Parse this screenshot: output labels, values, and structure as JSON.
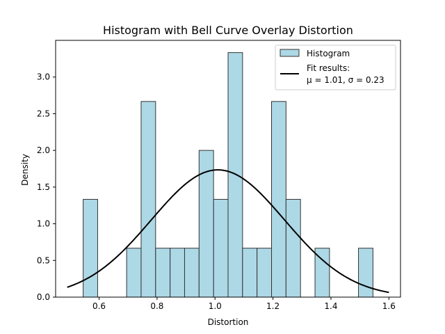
{
  "chart_data": {
    "type": "bar",
    "title": "Histogram with Bell Curve Overlay Distortion",
    "xlabel": "Distortion",
    "ylabel": "Density",
    "xlim": [
      0.45,
      1.64
    ],
    "ylim": [
      0,
      3.5
    ],
    "xticks": [
      0.6,
      0.8,
      1.0,
      1.2,
      1.4,
      1.6
    ],
    "xtick_labels": [
      "0.6",
      "0.8",
      "1.0",
      "1.2",
      "1.4",
      "1.6"
    ],
    "yticks": [
      0.0,
      0.5,
      1.0,
      1.5,
      2.0,
      2.5,
      3.0
    ],
    "ytick_labels": [
      "0.0",
      "0.5",
      "1.0",
      "1.5",
      "2.0",
      "2.5",
      "3.0"
    ],
    "bin_width": 0.05,
    "bins": [
      {
        "left": 0.545,
        "value": 1.333
      },
      {
        "left": 0.595,
        "value": 0
      },
      {
        "left": 0.645,
        "value": 0
      },
      {
        "left": 0.695,
        "value": 0.667
      },
      {
        "left": 0.745,
        "value": 2.667
      },
      {
        "left": 0.795,
        "value": 0.667
      },
      {
        "left": 0.845,
        "value": 0.667
      },
      {
        "left": 0.895,
        "value": 0.667
      },
      {
        "left": 0.945,
        "value": 2.0
      },
      {
        "left": 0.995,
        "value": 1.333
      },
      {
        "left": 1.045,
        "value": 3.333
      },
      {
        "left": 1.095,
        "value": 0.667
      },
      {
        "left": 1.145,
        "value": 0.667
      },
      {
        "left": 1.195,
        "value": 2.667
      },
      {
        "left": 1.245,
        "value": 1.333
      },
      {
        "left": 1.295,
        "value": 0
      },
      {
        "left": 1.345,
        "value": 0.667
      },
      {
        "left": 1.395,
        "value": 0
      },
      {
        "left": 1.445,
        "value": 0
      },
      {
        "left": 1.495,
        "value": 0.667
      }
    ],
    "fit": {
      "mu": 1.01,
      "sigma": 0.23,
      "x_range": [
        0.49,
        1.6
      ]
    },
    "legend": {
      "position": "upper right",
      "items": [
        {
          "kind": "patch",
          "label": "Histogram"
        },
        {
          "kind": "line",
          "label_line1": "Fit results:",
          "label_line2": "μ = 1.01, σ = 0.23"
        }
      ]
    },
    "colors": {
      "bar_fill": "#add8e6",
      "bar_edge": "#333333",
      "curve": "#000000",
      "axis": "#000000",
      "legend_edge": "#cccccc"
    }
  }
}
